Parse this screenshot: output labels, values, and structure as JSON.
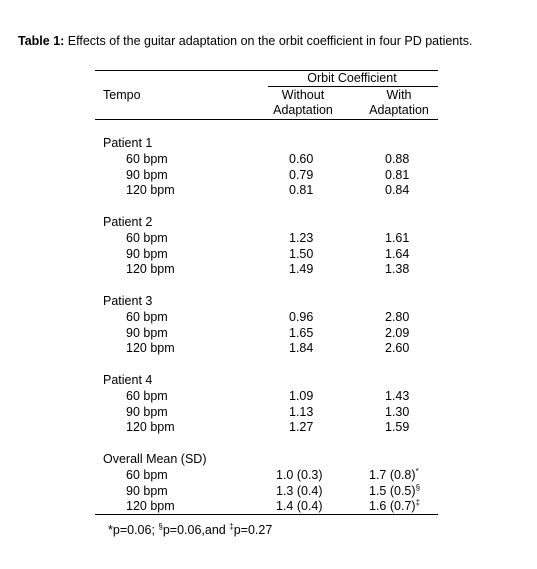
{
  "title": {
    "label": "Table 1:",
    "text": "Effects of the guitar adaptation on the orbit coefficient in four PD patients."
  },
  "table": {
    "header": {
      "group": "Orbit Coefficient",
      "tempo": "Tempo",
      "columns": [
        [
          "Without",
          "Adaptation"
        ],
        [
          "With",
          "Adaptation"
        ]
      ]
    },
    "groups": [
      {
        "name": "Patient 1",
        "rows": [
          [
            "60 bpm",
            "0.60",
            "0.88"
          ],
          [
            "90 bpm",
            "0.79",
            "0.81"
          ],
          [
            "120 bpm",
            "0.81",
            "0.84"
          ]
        ]
      },
      {
        "name": "Patient 2",
        "rows": [
          [
            "60 bpm",
            "1.23",
            "1.61"
          ],
          [
            "90 bpm",
            "1.50",
            "1.64"
          ],
          [
            "120 bpm",
            "1.49",
            "1.38"
          ]
        ]
      },
      {
        "name": "Patient 3",
        "rows": [
          [
            "60 bpm",
            "0.96",
            "2.80"
          ],
          [
            "90 bpm",
            "1.65",
            "2.09"
          ],
          [
            "120 bpm",
            "1.84",
            "2.60"
          ]
        ]
      },
      {
        "name": "Patient 4",
        "rows": [
          [
            "60 bpm",
            "1.09",
            "1.43"
          ],
          [
            "90 bpm",
            "1.13",
            "1.30"
          ],
          [
            "120 bpm",
            "1.27",
            "1.59"
          ]
        ]
      },
      {
        "name": "Overall Mean (SD)",
        "rows": [
          [
            "60 bpm",
            "1.0 (0.3)",
            "1.7 (0.8)",
            "*"
          ],
          [
            "90 bpm",
            "1.3 (0.4)",
            "1.5 (0.5)",
            "§"
          ],
          [
            "120 bpm",
            "1.4 (0.4)",
            "1.6 (0.7)",
            "‡"
          ]
        ]
      }
    ]
  },
  "footnote": [
    "*p=0.06; ",
    "§",
    "p=0.06,and ",
    "‡",
    "p=0.27"
  ]
}
